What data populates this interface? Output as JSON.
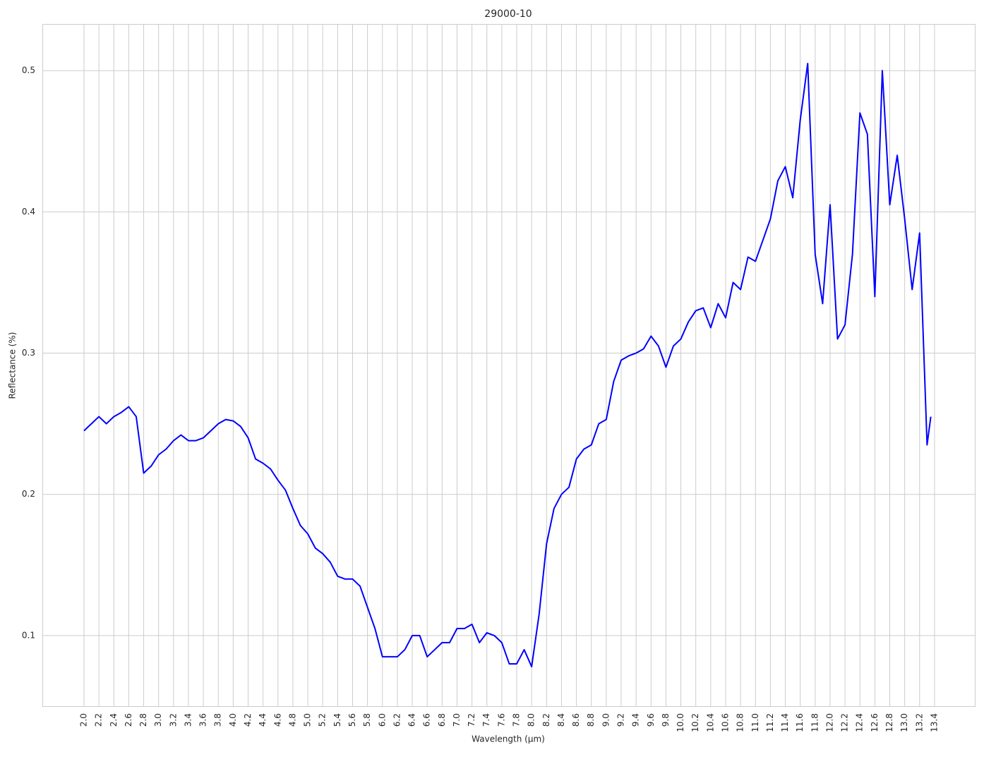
{
  "chart_data": {
    "type": "line",
    "title": "29000-10",
    "xlabel": "Wavelength (µm)",
    "ylabel": "Reflectance (%)",
    "x": [
      2.0,
      2.1,
      2.2,
      2.3,
      2.4,
      2.5,
      2.6,
      2.7,
      2.8,
      2.9,
      3.0,
      3.1,
      3.2,
      3.3,
      3.4,
      3.5,
      3.6,
      3.7,
      3.8,
      3.9,
      4.0,
      4.1,
      4.2,
      4.3,
      4.4,
      4.5,
      4.6,
      4.7,
      4.8,
      4.9,
      5.0,
      5.1,
      5.2,
      5.3,
      5.4,
      5.5,
      5.6,
      5.7,
      5.8,
      5.9,
      6.0,
      6.1,
      6.2,
      6.3,
      6.4,
      6.5,
      6.6,
      6.7,
      6.8,
      6.9,
      7.0,
      7.1,
      7.2,
      7.3,
      7.4,
      7.5,
      7.6,
      7.7,
      7.8,
      7.9,
      8.0,
      8.1,
      8.2,
      8.3,
      8.4,
      8.5,
      8.6,
      8.7,
      8.8,
      8.9,
      9.0,
      9.1,
      9.2,
      9.3,
      9.4,
      9.5,
      9.6,
      9.7,
      9.8,
      9.9,
      10.0,
      10.1,
      10.2,
      10.3,
      10.4,
      10.5,
      10.6,
      10.7,
      10.8,
      10.9,
      11.0,
      11.1,
      11.2,
      11.3,
      11.4,
      11.5,
      11.6,
      11.7,
      11.8,
      11.9,
      12.0,
      12.1,
      12.2,
      12.3,
      12.4,
      12.5,
      12.6,
      12.7,
      12.8,
      12.9,
      13.0,
      13.1,
      13.2,
      13.3,
      13.35
    ],
    "series": [
      {
        "name": "29000-10",
        "color": "#0000ff",
        "values": [
          0.245,
          0.25,
          0.255,
          0.25,
          0.255,
          0.258,
          0.262,
          0.255,
          0.215,
          0.22,
          0.228,
          0.232,
          0.238,
          0.242,
          0.238,
          0.238,
          0.24,
          0.245,
          0.25,
          0.253,
          0.252,
          0.248,
          0.24,
          0.225,
          0.222,
          0.218,
          0.21,
          0.203,
          0.19,
          0.178,
          0.172,
          0.162,
          0.158,
          0.152,
          0.142,
          0.14,
          0.14,
          0.135,
          0.12,
          0.105,
          0.085,
          0.085,
          0.085,
          0.09,
          0.1,
          0.1,
          0.085,
          0.09,
          0.095,
          0.095,
          0.105,
          0.105,
          0.108,
          0.095,
          0.102,
          0.1,
          0.095,
          0.08,
          0.08,
          0.09,
          0.078,
          0.115,
          0.165,
          0.19,
          0.2,
          0.205,
          0.225,
          0.232,
          0.235,
          0.25,
          0.253,
          0.28,
          0.295,
          0.298,
          0.3,
          0.303,
          0.312,
          0.305,
          0.29,
          0.305,
          0.31,
          0.322,
          0.33,
          0.332,
          0.318,
          0.335,
          0.325,
          0.35,
          0.345,
          0.368,
          0.365,
          0.38,
          0.395,
          0.422,
          0.432,
          0.41,
          0.465,
          0.505,
          0.37,
          0.335,
          0.405,
          0.31,
          0.32,
          0.37,
          0.47,
          0.455,
          0.34,
          0.5,
          0.405,
          0.44,
          0.395,
          0.345,
          0.385,
          0.235,
          0.255
        ]
      }
    ],
    "xlim": [
      1.442,
      13.94
    ],
    "ylim": [
      0.05,
      0.533
    ],
    "xticks": [
      {
        "value": 2,
        "label": "2.0"
      },
      2.2,
      2.4,
      2.6,
      2.8,
      {
        "value": 3,
        "label": "3.0"
      },
      3.2,
      3.4,
      3.6,
      3.8,
      {
        "value": 4,
        "label": "4.0"
      },
      4.2,
      4.4,
      4.6,
      4.8,
      {
        "value": 5,
        "label": "5.0"
      },
      5.2,
      5.4,
      5.6,
      5.8,
      {
        "value": 6,
        "label": "6.0"
      },
      6.2,
      6.4,
      6.6,
      6.8,
      {
        "value": 7,
        "label": "7.0"
      },
      7.2,
      7.4,
      7.6,
      7.8,
      {
        "value": 8,
        "label": "8.0"
      },
      8.2,
      8.4,
      8.6,
      8.8,
      {
        "value": 9,
        "label": "9.0"
      },
      9.2,
      9.4,
      9.6,
      9.8,
      {
        "value": 10,
        "label": "10.0"
      },
      10.2,
      10.4,
      10.6,
      10.8,
      {
        "value": 11,
        "label": "11.0"
      },
      11.2,
      11.4,
      11.6,
      11.8,
      {
        "value": 12,
        "label": "12.0"
      },
      12.2,
      12.4,
      12.6,
      12.8,
      {
        "value": 13,
        "label": "13.0"
      },
      13.2,
      13.4
    ],
    "yticks": [
      0.1,
      0.2,
      0.3,
      0.4,
      0.5
    ],
    "grid": true
  }
}
